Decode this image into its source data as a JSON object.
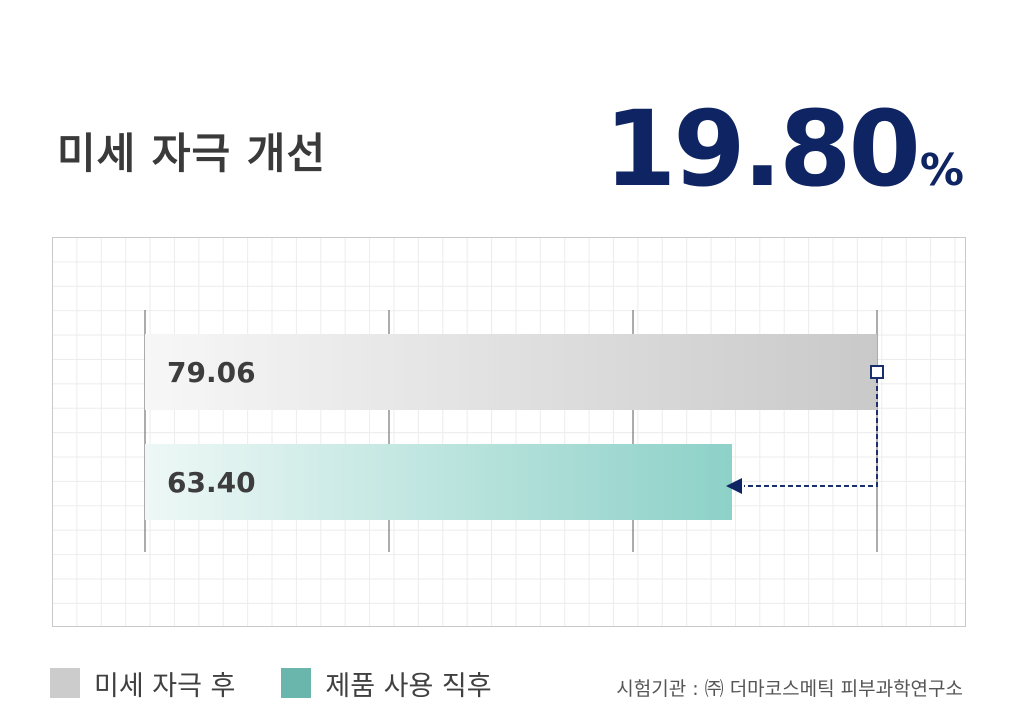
{
  "title": "미세 자극 개선",
  "headline": {
    "value": "19.80",
    "unit": "%"
  },
  "chart_data": {
    "type": "bar",
    "orientation": "horizontal",
    "categories": [
      "미세 자극 후",
      "제품 사용 직후"
    ],
    "values": [
      79.06,
      63.4
    ],
    "value_labels": [
      "79.06",
      "63.40"
    ],
    "xlim": [
      0,
      79.06
    ],
    "grid": true,
    "legend_placement": "bottom-left",
    "colors": [
      "#cccccc",
      "#6ab6ac"
    ],
    "annotation": "arrow from 79.06 bar end to 63.40 bar end"
  },
  "legend": [
    {
      "label": "미세 자극 후",
      "color": "#cccccc"
    },
    {
      "label": "제품 사용 직후",
      "color": "#6ab6ac"
    }
  ],
  "source": "시험기관 : ㈜ 더마코스메틱 피부과학연구소"
}
